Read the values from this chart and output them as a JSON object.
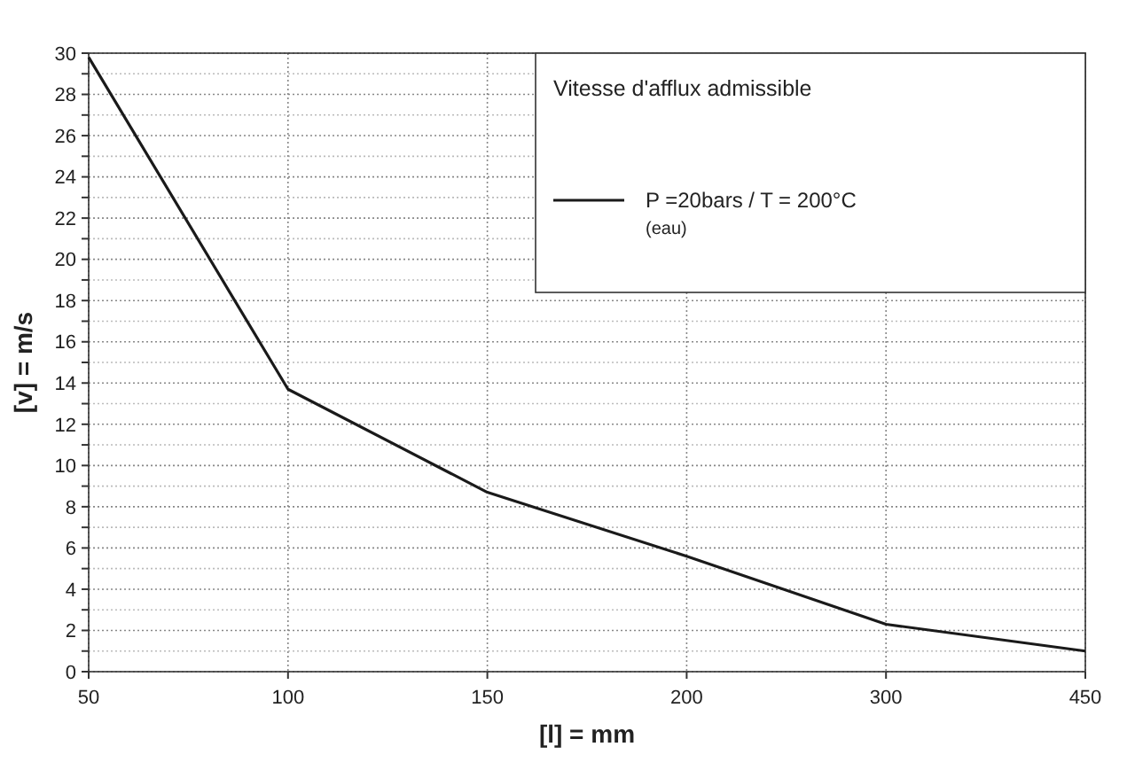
{
  "chart_data": {
    "type": "line",
    "xlabel": "[l] = mm",
    "ylabel": "[v] = m/s",
    "legend_title": "Vitesse d'afflux admissible",
    "categories": [
      "50",
      "100",
      "150",
      "200",
      "300",
      "450"
    ],
    "series": [
      {
        "name": "P =20bars / T = 200°C\n(eau)",
        "color": "#1a1a1a",
        "values": [
          29.8,
          13.7,
          8.7,
          5.6,
          2.3,
          1.0
        ]
      }
    ],
    "ylim": [
      0,
      30
    ],
    "yticks": [
      0,
      {
        "value": 1,
        "label": null
      },
      2,
      {
        "value": 3,
        "label": null
      },
      4,
      {
        "value": 5,
        "label": null
      },
      6,
      {
        "value": 7,
        "label": null
      },
      8,
      {
        "value": 9,
        "label": null
      },
      10,
      {
        "value": 11,
        "label": null
      },
      12,
      {
        "value": 13,
        "label": null
      },
      14,
      {
        "value": 15,
        "label": null
      },
      16,
      {
        "value": 17,
        "label": null
      },
      18,
      {
        "value": 19,
        "label": null
      },
      20,
      {
        "value": 21,
        "label": null
      },
      22,
      {
        "value": 23,
        "label": null
      },
      24,
      {
        "value": 25,
        "label": null
      },
      26,
      {
        "value": 27,
        "label": null
      },
      28,
      {
        "value": 29,
        "label": null
      },
      30
    ],
    "grid": true,
    "legend": "top right",
    "marker": "none",
    "line_style": "solid"
  }
}
